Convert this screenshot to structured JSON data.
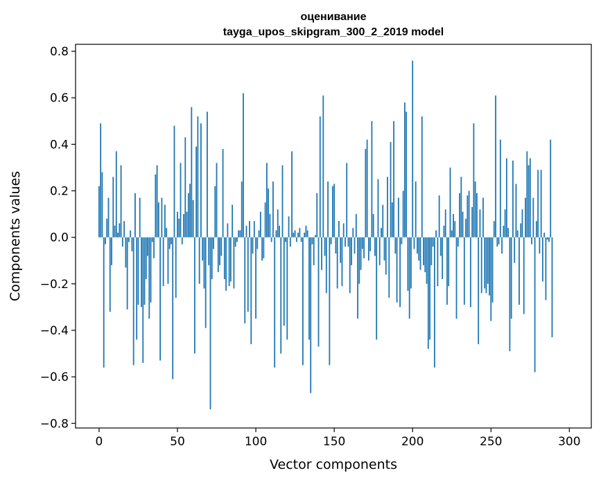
{
  "chart_data": {
    "type": "bar",
    "title": "оценивание",
    "subtitle": "tayga_upos_skipgram_300_2_2019 model",
    "xlabel": "Vector components",
    "ylabel": "Components values",
    "xlim": [
      -15,
      314
    ],
    "ylim": [
      -0.82,
      0.83
    ],
    "xticks": [
      0,
      50,
      100,
      150,
      200,
      250,
      300
    ],
    "xtick_labels": [
      "0",
      "50",
      "100",
      "150",
      "200",
      "250",
      "300"
    ],
    "yticks": [
      -0.8,
      -0.6,
      -0.4,
      -0.2,
      0.0,
      0.2,
      0.4,
      0.6,
      0.8
    ],
    "ytick_labels": [
      "−0.8",
      "−0.6",
      "−0.4",
      "−0.2",
      "0.0",
      "0.2",
      "0.4",
      "0.6",
      "0.8"
    ],
    "grid": false,
    "legend": "none",
    "bar_color": "#1f77b4",
    "values": [
      0.22,
      0.49,
      0.28,
      -0.56,
      -0.03,
      0.08,
      0.17,
      -0.32,
      -0.12,
      0.26,
      0.05,
      0.37,
      0.02,
      0.06,
      0.31,
      -0.04,
      0.07,
      -0.13,
      -0.31,
      -0.02,
      0.03,
      -0.06,
      -0.55,
      0.19,
      -0.44,
      -0.29,
      0.17,
      -0.3,
      -0.54,
      -0.29,
      -0.18,
      -0.08,
      -0.35,
      -0.28,
      -0.02,
      -0.09,
      0.27,
      0.31,
      0.15,
      -0.53,
      0.17,
      -0.21,
      0.14,
      0.04,
      -0.2,
      -0.05,
      -0.03,
      -0.61,
      0.48,
      -0.26,
      0.11,
      0.08,
      0.32,
      -0.03,
      0.1,
      0.43,
      0.11,
      0.19,
      0.23,
      0.56,
      0.16,
      -0.5,
      0.39,
      0.52,
      -0.2,
      0.49,
      -0.1,
      -0.22,
      -0.39,
      0.54,
      -0.12,
      -0.74,
      -0.18,
      -0.05,
      0.22,
      0.32,
      -0.15,
      -0.12,
      -0.08,
      0.38,
      -0.18,
      -0.23,
      0.06,
      -0.21,
      -0.19,
      0.14,
      -0.22,
      -0.04,
      -0.02,
      0.03,
      0.03,
      0.24,
      0.62,
      -0.37,
      0.05,
      -0.32,
      0.07,
      -0.46,
      -0.07,
      0.07,
      -0.35,
      -0.05,
      0.03,
      0.11,
      -0.1,
      -0.09,
      0.15,
      0.32,
      0.21,
      0.1,
      -0.02,
      0.24,
      -0.56,
      0.03,
      0.12,
      0.05,
      -0.5,
      0.31,
      -0.38,
      -0.02,
      -0.44,
      0.09,
      -0.04,
      0.37,
      0.02,
      0.03,
      -0.02,
      0.02,
      0.04,
      -0.02,
      -0.55,
      0.02,
      0.05,
      0.03,
      -0.44,
      -0.67,
      -0.03,
      -0.12,
      0.01,
      0.19,
      -0.47,
      0.52,
      -0.14,
      0.61,
      -0.08,
      -0.24,
      0.24,
      -0.55,
      -0.03,
      0.22,
      0.23,
      -0.07,
      -0.22,
      0.07,
      -0.11,
      -0.21,
      0.06,
      -0.04,
      0.32,
      -0.04,
      -0.24,
      -0.12,
      0.04,
      -0.07,
      0.1,
      -0.35,
      -0.2,
      -0.14,
      -0.05,
      -0.09,
      0.38,
      0.42,
      -0.1,
      -0.06,
      0.5,
      0.1,
      -0.08,
      -0.44,
      0.25,
      -0.12,
      0.04,
      0.14,
      -0.1,
      -0.16,
      0.26,
      -0.26,
      0.41,
      0.15,
      0.5,
      -0.07,
      -0.28,
      0.17,
      -0.3,
      -0.03,
      0.2,
      0.58,
      0.54,
      -0.23,
      -0.35,
      -0.22,
      0.76,
      -0.05,
      0.24,
      -0.07,
      -0.1,
      -0.14,
      0.52,
      -0.12,
      -0.15,
      -0.2,
      -0.48,
      -0.44,
      -0.12,
      -0.04,
      -0.56,
      0.03,
      -0.21,
      0.18,
      -0.08,
      -0.18,
      0.05,
      0.12,
      -0.29,
      -0.21,
      0.3,
      0.03,
      0.1,
      0.07,
      -0.35,
      -0.04,
      0.19,
      0.26,
      0.11,
      -0.29,
      0.08,
      0.18,
      0.2,
      -0.3,
      0.13,
      0.49,
      0.24,
      0.19,
      -0.46,
      0.12,
      -0.24,
      0.17,
      -0.22,
      -0.24,
      -0.2,
      -0.25,
      -0.36,
      -0.28,
      0.07,
      0.61,
      -0.04,
      -0.03,
      0.42,
      -0.07,
      0.05,
      0.12,
      0.34,
      0.04,
      -0.49,
      -0.35,
      0.33,
      -0.11,
      0.23,
      0.03,
      -0.29,
      0.06,
      0.12,
      -0.33,
      0.17,
      0.37,
      0.31,
      0.34,
      -0.03,
      0.17,
      -0.58,
      0.07,
      0.29,
      -0.07,
      0.29,
      -0.19,
      0.02,
      -0.27,
      -0.01,
      -0.02,
      0.42,
      -0.43
    ]
  }
}
